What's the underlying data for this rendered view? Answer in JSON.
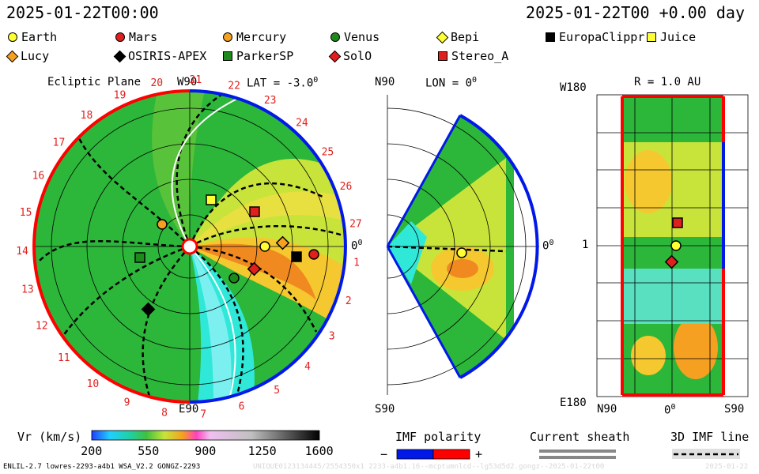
{
  "header": {
    "datetime": "2025-01-22T00:00",
    "datetime_right": "2025-01-22T00 +0.00 day"
  },
  "legend": [
    {
      "name": "Earth",
      "shape": "circle",
      "color": "#ffff33"
    },
    {
      "name": "Mars",
      "shape": "circle",
      "color": "#e0201e"
    },
    {
      "name": "Mercury",
      "shape": "circle",
      "color": "#f5a020"
    },
    {
      "name": "Venus",
      "shape": "circle",
      "color": "#1e8a1e"
    },
    {
      "name": "Bepi",
      "shape": "diamond",
      "color": "#ffff33"
    },
    {
      "name": "EuropaClippr",
      "shape": "square",
      "color": "#000000"
    },
    {
      "name": "Juice",
      "shape": "square",
      "color": "#ffff33"
    },
    {
      "name": "Lucy",
      "shape": "diamond",
      "color": "#f5a020"
    },
    {
      "name": "OSIRIS-APEX",
      "shape": "diamond",
      "color": "#000000"
    },
    {
      "name": "ParkerSP",
      "shape": "square",
      "color": "#1e8a1e"
    },
    {
      "name": "SolO",
      "shape": "diamond",
      "color": "#e0201e"
    },
    {
      "name": "Stereo_A",
      "shape": "square",
      "color": "#e0201e"
    }
  ],
  "ecliptic": {
    "title": "Ecliptic Plane",
    "lat_label": "LAT = -3.0",
    "top_label": "W90",
    "bottom_label": "E90",
    "right_label": "0",
    "deg": "0",
    "carrington": [
      "1",
      "2",
      "3",
      "4",
      "5",
      "6",
      "7",
      "8",
      "9",
      "10",
      "11",
      "12",
      "13",
      "14",
      "15",
      "16",
      "17",
      "18",
      "19",
      "20",
      "21",
      "22",
      "23",
      "24",
      "25",
      "26",
      "27"
    ]
  },
  "meridional": {
    "top_label": "N90",
    "bottom_label": "S90",
    "lon_label": "LON = 0",
    "deg": "0",
    "right_label": "0"
  },
  "sphere": {
    "title": "R = 1.0 AU",
    "top_left": "W180",
    "left_mid": "1",
    "bottom_left": "E180",
    "x_left": "N90",
    "x_mid": "0",
    "x_right": "S90",
    "deg": "0"
  },
  "colorbar": {
    "label": "Vr (km/s)",
    "ticks": [
      "200",
      "550",
      "900",
      "1250",
      "1600"
    ]
  },
  "imf": {
    "label": "IMF polarity",
    "minus": "−",
    "plus": "+",
    "colors": {
      "negative": "#0018e8",
      "positive": "#ff0000"
    }
  },
  "current_sheath": {
    "label": "Current sheath"
  },
  "imf_line": {
    "label": "3D IMF line"
  },
  "footer": {
    "model": "ENLIL-2.7 lowres-2293-a4b1 WSA_V2.2 GONGZ-2293",
    "watermark": "UNIQUE0123134445/2554350x1 2233-a4b1.16--mcptumnlcd--lg53d5d2.gongz--2025-01-22t00",
    "right": "2025-01-22"
  }
}
